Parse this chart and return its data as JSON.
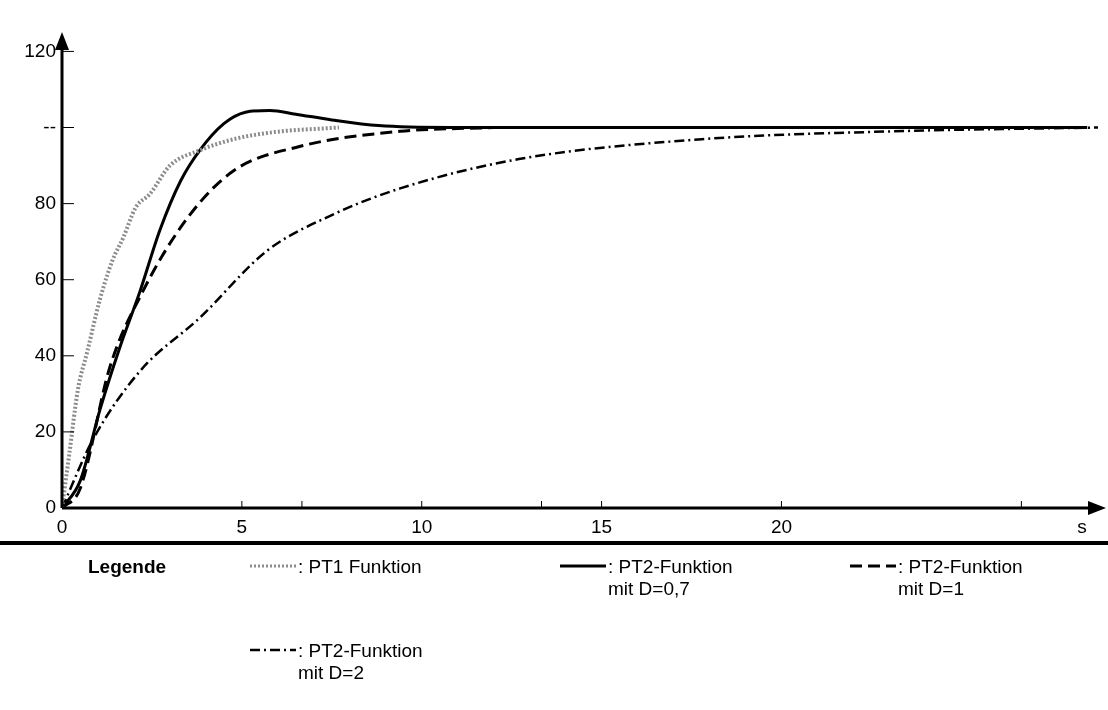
{
  "chart_data": {
    "type": "line",
    "legend_title": "Legende",
    "legend": "bottom",
    "grid": false,
    "marker": "none",
    "xlim": [
      0,
      28.8
    ],
    "ylim": [
      0,
      123
    ],
    "xlabel": "s",
    "xticks": [
      0,
      5,
      {
        "value": 6.67,
        "label": null
      },
      10,
      {
        "value": 13.33,
        "label": null
      },
      15,
      20,
      {
        "value": 26.67,
        "label": null
      }
    ],
    "yticks": [
      0,
      20,
      40,
      60,
      80,
      {
        "value": 100,
        "label": "--"
      },
      120
    ],
    "series": [
      {
        "name": ": PT1 Funktion",
        "color": "#8c8c8c",
        "line_style": "dotted",
        "x": [
          0,
          0.2,
          0.44,
          0.7,
          1.06,
          1.4,
          1.7,
          2.05,
          2.44,
          3,
          3.83,
          4.8,
          5.9,
          7.7
        ],
        "values": [
          0,
          14,
          31,
          41,
          55,
          65,
          71,
          79,
          82.5,
          90,
          94,
          97,
          98.8,
          100
        ]
      },
      {
        "name": ": PT2-Funktion mit D=0,7",
        "color": "#000000",
        "line_style": "solid",
        "x": [
          0,
          0.5,
          1.06,
          1.6,
          2.17,
          2.72,
          3.3,
          3.83,
          4.5,
          5.1,
          5.78,
          6.5,
          7.5,
          8.8,
          10.8,
          28.5
        ],
        "values": [
          0,
          7,
          26,
          42,
          57,
          73,
          86,
          94,
          101,
          104,
          104.5,
          103.5,
          102,
          100.5,
          100,
          100
        ]
      },
      {
        "name": ": PT2-Funktion mit D=1",
        "color": "#000000",
        "line_style": "dashed",
        "x": [
          0,
          0.5,
          1.33,
          2.25,
          3.47,
          4.75,
          6.6,
          9.4,
          12
        ],
        "values": [
          0,
          5,
          37,
          57,
          76,
          88.5,
          95,
          99,
          100
        ]
      },
      {
        "name": ": PT2-Funktion mit D=2",
        "color": "#000000",
        "line_style": "dashdot",
        "x": [
          0,
          0.86,
          2.17,
          3.83,
          5.7,
          7.5,
          9.4,
          12.7,
          17.9,
          23.1,
          28.8
        ],
        "values": [
          0,
          18,
          36,
          50,
          67.6,
          77,
          84,
          91.7,
          97,
          99,
          100
        ]
      }
    ]
  }
}
